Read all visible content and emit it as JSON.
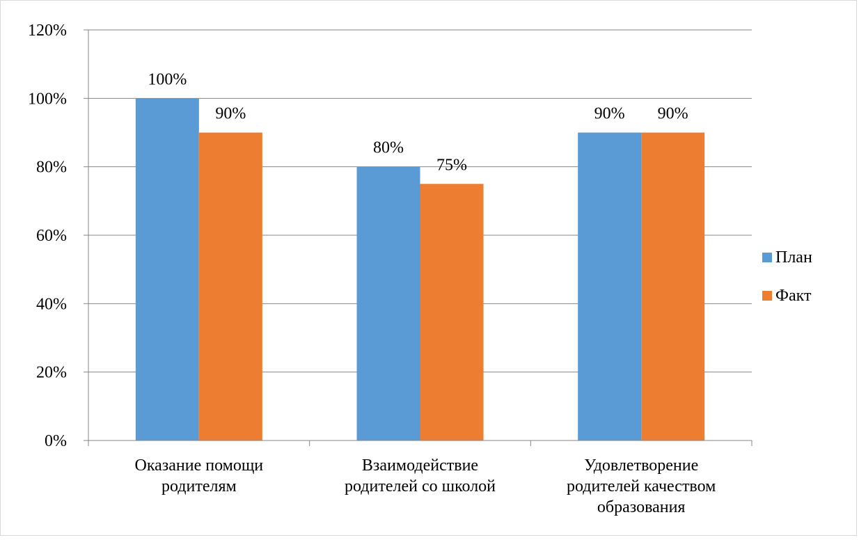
{
  "chart_data": {
    "type": "bar",
    "title": "",
    "xlabel": "",
    "ylabel": "",
    "categories": [
      [
        "Оказание помощи",
        "родителям"
      ],
      [
        "Взаимодействие",
        "родителей со школой"
      ],
      [
        "Удовлетворение",
        "родителей качеством",
        "образования"
      ]
    ],
    "series": [
      {
        "name": "План",
        "color": "#5b9bd5",
        "values": [
          100,
          80,
          90
        ],
        "labels": [
          "100%",
          "80%",
          "90%"
        ]
      },
      {
        "name": "Факт",
        "color": "#ed7d31",
        "values": [
          90,
          75,
          90
        ],
        "labels": [
          "90%",
          "75%",
          "90%"
        ]
      }
    ],
    "ylim": [
      0,
      120
    ],
    "yticks": [
      0,
      20,
      40,
      60,
      80,
      100,
      120
    ],
    "ytick_labels": [
      "0%",
      "20%",
      "40%",
      "60%",
      "80%",
      "100%",
      "120%"
    ],
    "grid": true,
    "legend_position": "right"
  }
}
